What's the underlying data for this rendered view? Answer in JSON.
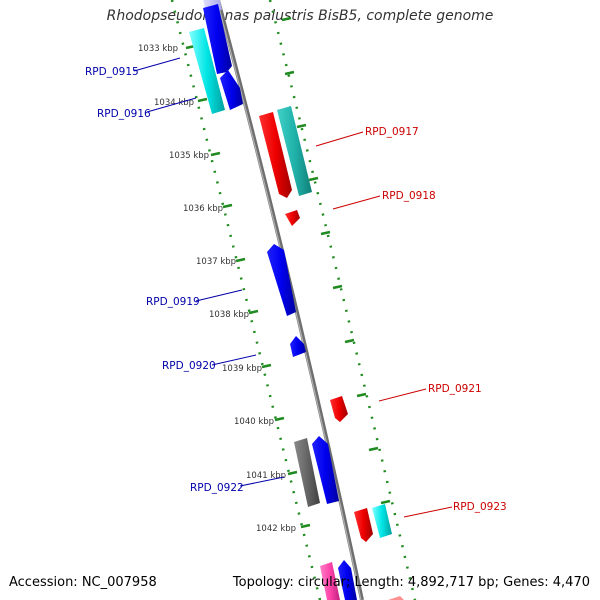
{
  "title": "Rhodopseudomonas palustris BisB5, complete genome",
  "accession_text": "Accession: NC_007958",
  "summary_text": "Topology: circular; Length: 4,892,717 bp; Genes: 4,470",
  "colors": {
    "backbone": "#8a8a8a",
    "ruler_ticks": "#1f8a1f",
    "forward_label": "#0000aa",
    "reverse_label": "#cc0000",
    "blue": "#0000ee",
    "cyan": "#00e5e5",
    "dark_cyan": "#20b2aa",
    "red": "#ee0000",
    "gray": "#666666",
    "pink": "#ff44aa"
  },
  "kbp_labels": [
    "1033 kbp",
    "1034 kbp",
    "1035 kbp",
    "1036 kbp",
    "1037 kbp",
    "1038 kbp",
    "1039 kbp",
    "1040 kbp",
    "1041 kbp",
    "1042 kbp"
  ],
  "gene_labels": [
    {
      "text": "RPD_0915",
      "strand": "forward"
    },
    {
      "text": "RPD_0916",
      "strand": "forward"
    },
    {
      "text": "RPD_0917",
      "strand": "reverse"
    },
    {
      "text": "RPD_0918",
      "strand": "reverse"
    },
    {
      "text": "RPD_0919",
      "strand": "forward"
    },
    {
      "text": "RPD_0920",
      "strand": "forward"
    },
    {
      "text": "RPD_0921",
      "strand": "reverse"
    },
    {
      "text": "RPD_0922",
      "strand": "forward"
    },
    {
      "text": "RPD_0923",
      "strand": "reverse"
    }
  ]
}
